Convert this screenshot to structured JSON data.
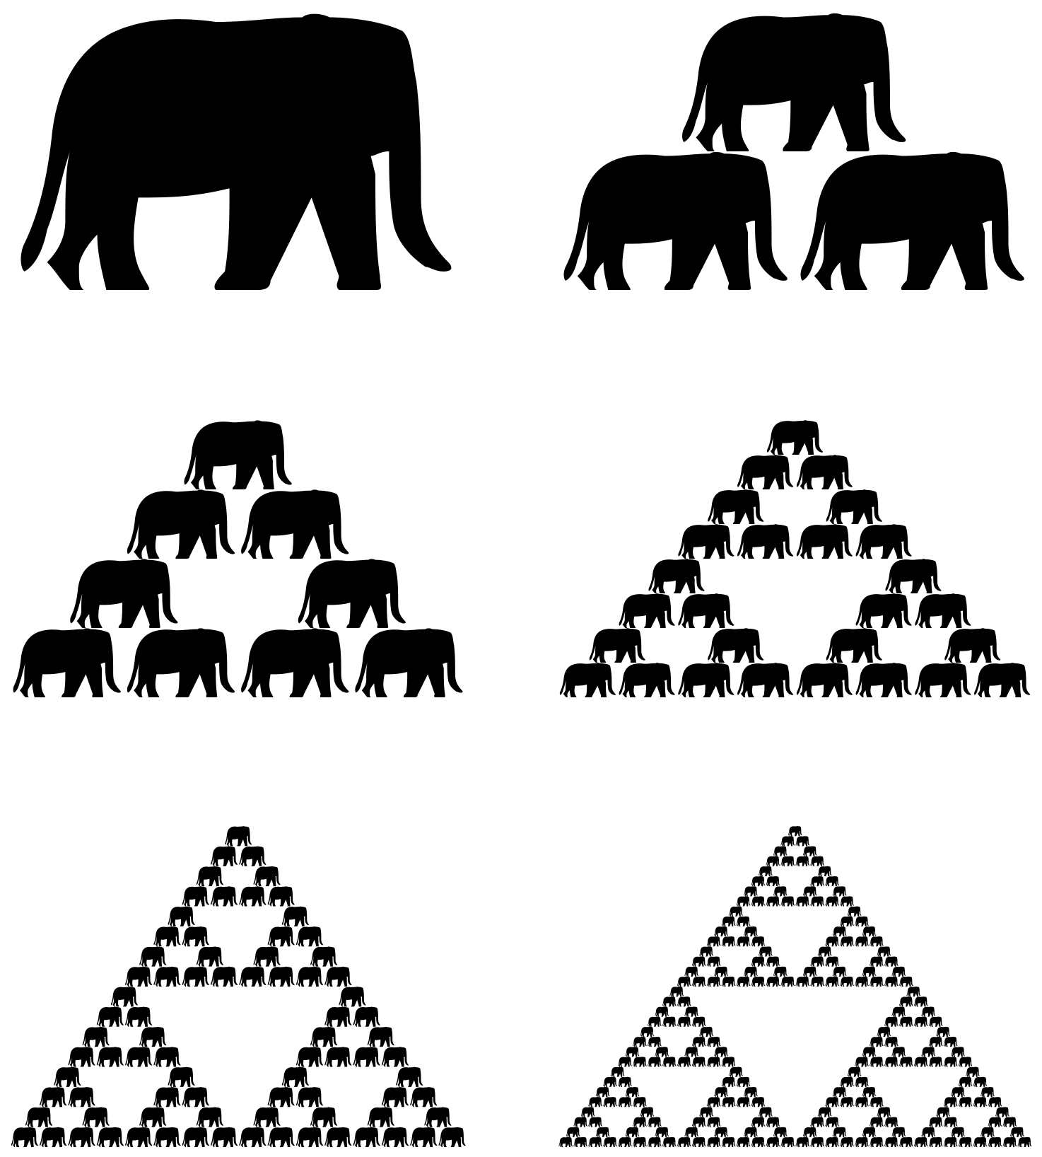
{
  "figure": {
    "subject": "elephant-silhouette",
    "pattern": "sierpinski-triangle",
    "fill_color": "#000000",
    "background_color": "#ffffff",
    "panels": [
      {
        "iteration": 0,
        "elephant_count": 1
      },
      {
        "iteration": 1,
        "elephant_count": 3
      },
      {
        "iteration": 2,
        "elephant_count": 9
      },
      {
        "iteration": 3,
        "elephant_count": 27
      },
      {
        "iteration": 4,
        "elephant_count": 81
      },
      {
        "iteration": 5,
        "elephant_count": 243
      }
    ]
  }
}
